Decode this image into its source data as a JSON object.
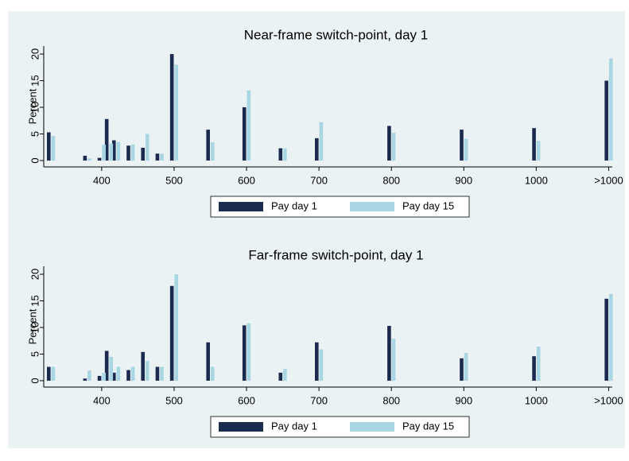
{
  "chart_data": [
    {
      "type": "bar",
      "title": "Near-frame switch-point, day 1",
      "y_label": "Percent",
      "x": [
        330,
        380,
        400,
        410,
        420,
        440,
        460,
        480,
        500,
        550,
        600,
        650,
        700,
        800,
        900,
        1000,
        1100
      ],
      "series": [
        {
          "name": "Pay day 1",
          "color": "#1b2a4f",
          "values": [
            5.3,
            0.9,
            0.5,
            7.8,
            3.8,
            2.8,
            2.4,
            1.3,
            20,
            5.8,
            10,
            2.3,
            4.2,
            6.5,
            5.8,
            6.1,
            15
          ]
        },
        {
          "name": "Pay day 15",
          "color": "#a9d6e3",
          "values": [
            4.6,
            0.4,
            3.0,
            3.2,
            3.5,
            3.0,
            5.0,
            1.3,
            18,
            3.4,
            13.2,
            2.3,
            7.2,
            5.2,
            4.1,
            3.7,
            19.2
          ]
        }
      ],
      "xlim": [
        320,
        1105
      ],
      "ylim": [
        -1.2,
        21.5
      ],
      "xticks": [
        400,
        500,
        600,
        700,
        800,
        900,
        1000,
        {
          "value": 1100,
          "label": ">1000"
        }
      ],
      "yticks": [
        0,
        5,
        10,
        15,
        20
      ]
    },
    {
      "type": "bar",
      "title": "Far-frame switch-point, day 1",
      "y_label": "Percent",
      "x": [
        330,
        380,
        400,
        410,
        420,
        440,
        460,
        480,
        500,
        550,
        600,
        650,
        700,
        800,
        900,
        1000,
        1100
      ],
      "series": [
        {
          "name": "Pay day 1",
          "color": "#1b2a4f",
          "values": [
            2.6,
            0.4,
            0.9,
            5.6,
            1.5,
            2.0,
            5.4,
            2.6,
            17.8,
            7.2,
            10.4,
            1.5,
            7.2,
            10.3,
            4.2,
            4.6,
            15.4
          ]
        },
        {
          "name": "Pay day 15",
          "color": "#a9d6e3",
          "values": [
            2.6,
            1.9,
            1.5,
            4.5,
            2.6,
            2.6,
            3.7,
            2.6,
            20,
            2.6,
            10.8,
            2.2,
            5.9,
            7.9,
            5.2,
            6.4,
            16.3
          ]
        }
      ],
      "xlim": [
        320,
        1105
      ],
      "ylim": [
        -1.2,
        21.5
      ],
      "xticks": [
        400,
        500,
        600,
        700,
        800,
        900,
        1000,
        {
          "value": 1100,
          "label": ">1000"
        }
      ],
      "yticks": [
        0,
        5,
        10,
        15,
        20
      ]
    }
  ]
}
